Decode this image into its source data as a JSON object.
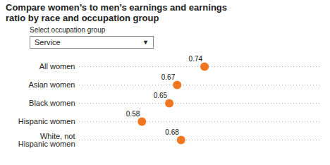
{
  "chart_data": {
    "type": "dot",
    "title": "Compare women’s to men’s earnings and earnings\nratio by race and occupation group",
    "annotations": [
      "Select occupation group",
      "Service",
      "▼"
    ],
    "categories": [
      "All women",
      "Asian women",
      "Black women",
      "Hispanic women",
      "White, not\nHispanic women"
    ],
    "values": [
      0.74,
      0.67,
      0.65,
      0.58,
      0.68
    ],
    "color": "#F07720",
    "xlim": [
      0.42,
      1.04
    ],
    "grid": true,
    "data_labels": true,
    "tick_labels": "y"
  }
}
